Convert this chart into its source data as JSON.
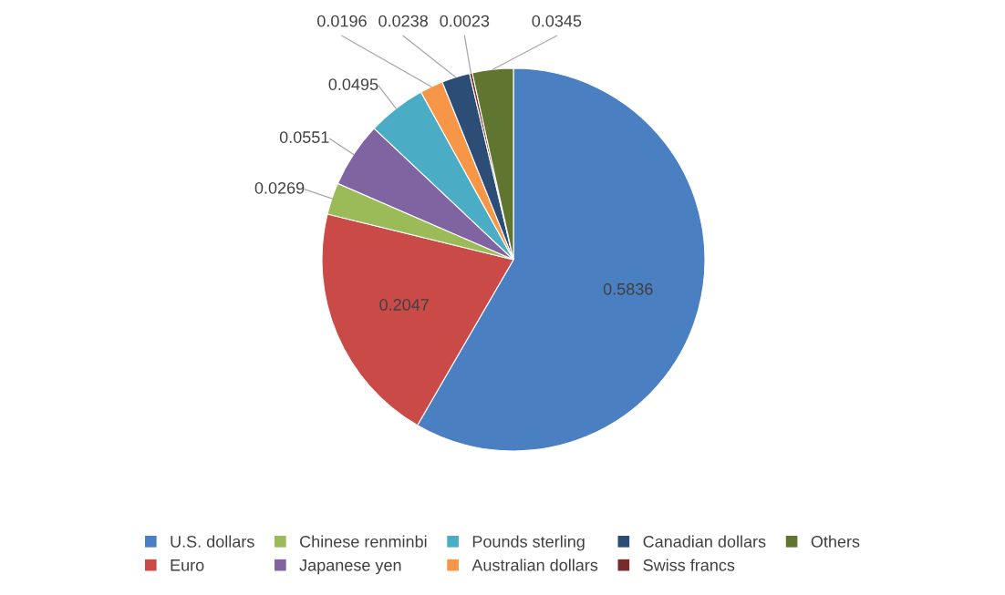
{
  "chart_data": {
    "type": "pie",
    "categories": [
      "U.S. dollars",
      "Euro",
      "Chinese renminbi",
      "Japanese yen",
      "Pounds sterling",
      "Australian dollars",
      "Canadian dollars",
      "Swiss francs",
      "Others"
    ],
    "values": [
      0.5836,
      0.2047,
      0.0269,
      0.0551,
      0.0495,
      0.0196,
      0.0238,
      0.0023,
      0.0345
    ],
    "colors": [
      "#4a7fc1",
      "#c94a47",
      "#9bbb59",
      "#8064a2",
      "#4bacc6",
      "#f79646",
      "#2c4d75",
      "#772c2a",
      "#5f7530"
    ],
    "data_labels": true,
    "legend": "bottom"
  }
}
